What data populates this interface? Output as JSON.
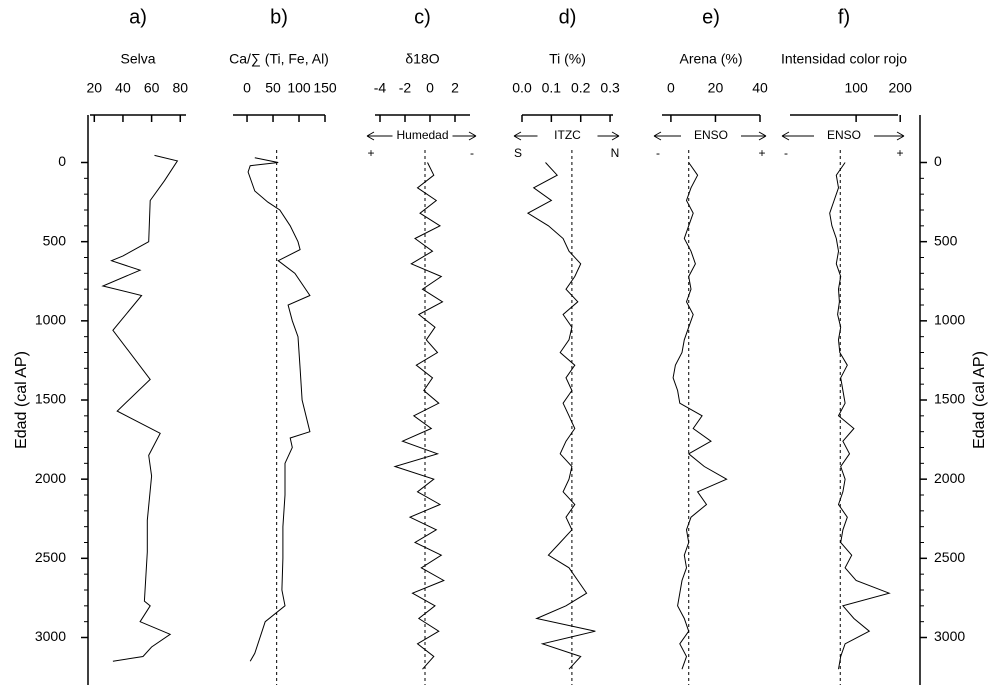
{
  "chart_data": [
    {
      "type": "line",
      "title": "a)",
      "xlabel": "Selva",
      "xlim": [
        17,
        84
      ],
      "xticks": [
        20,
        40,
        60,
        80
      ],
      "y": [
        -45,
        -10,
        115,
        240,
        500,
        590,
        620,
        680,
        780,
        840,
        1060,
        1370,
        1570,
        1710,
        1850,
        1980,
        2260,
        2460,
        2770,
        2800,
        2900,
        2980,
        3060,
        3120,
        3150
      ],
      "values": [
        62,
        78,
        69,
        59,
        58,
        40,
        32,
        52,
        26,
        53,
        33,
        59,
        36,
        66,
        58,
        60,
        57,
        57,
        55,
        59,
        52,
        73,
        60,
        54,
        33
      ]
    },
    {
      "type": "line",
      "title": "b)",
      "xlabel": "Ca/∑ (Ti, Fe, Al)",
      "xlim": [
        -27,
        150
      ],
      "xticks": [
        0,
        50,
        100,
        150
      ],
      "ref_line": 57,
      "y": [
        -30,
        0,
        20,
        60,
        180,
        250,
        300,
        400,
        500,
        550,
        620,
        700,
        840,
        900,
        1000,
        1100,
        1300,
        1500,
        1700,
        1740,
        1800,
        1900,
        2100,
        2300,
        2500,
        2700,
        2800,
        2900,
        3000,
        3100,
        3150
      ],
      "values": [
        15,
        60,
        6,
        2,
        15,
        40,
        63,
        83,
        98,
        102,
        60,
        92,
        121,
        79,
        87,
        98,
        102,
        106,
        121,
        83,
        87,
        73,
        73,
        69,
        69,
        67,
        73,
        35,
        25,
        15,
        6
      ]
    },
    {
      "type": "line",
      "title": "c)",
      "xlabel": "δ18O",
      "xlim": [
        -4.4,
        3.2
      ],
      "xticks": [
        -4,
        -2,
        0,
        2
      ],
      "ref_line": -0.4,
      "annotation": {
        "label": "Humedad",
        "left": "+",
        "right": "-"
      },
      "y": [
        0,
        80,
        160,
        240,
        320,
        400,
        480,
        560,
        640,
        720,
        800,
        880,
        960,
        1040,
        1120,
        1200,
        1280,
        1360,
        1440,
        1520,
        1600,
        1680,
        1760,
        1840,
        1920,
        2000,
        2080,
        2160,
        2240,
        2320,
        2400,
        2480,
        2560,
        2640,
        2720,
        2800,
        2880,
        2960,
        3040,
        3120,
        3200
      ],
      "values": [
        -0.2,
        0.3,
        -1.0,
        0.5,
        -0.8,
        0.8,
        -1.2,
        0.2,
        -1.5,
        0.9,
        -0.6,
        1.0,
        -0.9,
        0.4,
        -0.3,
        0.6,
        -1.1,
        0.2,
        -0.5,
        0.7,
        -1.3,
        0.1,
        -2.2,
        0.6,
        -2.8,
        0.3,
        -1.0,
        0.8,
        -1.6,
        0.5,
        -1.2,
        0.9,
        -0.7,
        1.1,
        -1.4,
        0.4,
        -0.9,
        0.7,
        -1.0,
        0.3,
        -0.6
      ]
    },
    {
      "type": "line",
      "title": "d)",
      "xlabel": "Ti (%)",
      "xlim": [
        0,
        0.31
      ],
      "xticks": [
        {
          "value": 0,
          "label": "0.0"
        },
        0.1,
        0.2,
        0.3
      ],
      "ref_line": 0.17,
      "annotation": {
        "label": "ITZC",
        "left": "S",
        "right": "N"
      },
      "y": [
        0,
        80,
        160,
        240,
        320,
        400,
        480,
        560,
        640,
        720,
        800,
        880,
        960,
        1040,
        1120,
        1200,
        1280,
        1360,
        1440,
        1520,
        1600,
        1680,
        1760,
        1840,
        1920,
        2000,
        2080,
        2160,
        2240,
        2320,
        2400,
        2480,
        2560,
        2640,
        2720,
        2800,
        2880,
        2960,
        3040,
        3120,
        3200
      ],
      "values": [
        0.08,
        0.12,
        0.04,
        0.1,
        0.02,
        0.09,
        0.14,
        0.16,
        0.2,
        0.18,
        0.15,
        0.19,
        0.14,
        0.17,
        0.16,
        0.13,
        0.18,
        0.15,
        0.17,
        0.14,
        0.16,
        0.18,
        0.15,
        0.13,
        0.17,
        0.16,
        0.14,
        0.18,
        0.15,
        0.17,
        0.13,
        0.09,
        0.16,
        0.19,
        0.22,
        0.15,
        0.05,
        0.25,
        0.07,
        0.2,
        0.16
      ]
    },
    {
      "type": "line",
      "title": "e)",
      "xlabel": "Arena (%)",
      "xlim": [
        -4,
        40
      ],
      "xticks": [
        0,
        20,
        40
      ],
      "ref_line": 8,
      "annotation": {
        "label": "ENSO",
        "left": "-",
        "right": "+"
      },
      "y": [
        0,
        80,
        160,
        240,
        320,
        400,
        480,
        560,
        640,
        720,
        800,
        880,
        960,
        1040,
        1120,
        1200,
        1280,
        1360,
        1440,
        1520,
        1600,
        1680,
        1760,
        1840,
        1920,
        2000,
        2080,
        2160,
        2240,
        2320,
        2400,
        2480,
        2560,
        2640,
        2720,
        2800,
        2880,
        2960,
        3040,
        3120,
        3200
      ],
      "values": [
        8,
        12,
        9,
        7,
        10,
        8,
        6,
        9,
        11,
        8,
        9,
        7,
        10,
        8,
        6,
        5,
        2,
        1,
        3,
        4,
        14,
        10,
        18,
        8,
        15,
        25,
        12,
        16,
        9,
        7,
        8,
        6,
        7,
        5,
        4,
        3,
        6,
        8,
        4,
        7,
        5
      ]
    },
    {
      "type": "line",
      "title": "f)",
      "xlabel": "Intensidad color rojo",
      "xlim": [
        -50,
        195
      ],
      "xticks": [
        100,
        200
      ],
      "ref_line": 64,
      "annotation": {
        "label": "ENSO",
        "left": "-",
        "right": "+"
      },
      "y": [
        0,
        80,
        160,
        240,
        320,
        400,
        480,
        560,
        640,
        720,
        800,
        880,
        960,
        1040,
        1120,
        1200,
        1280,
        1360,
        1440,
        1520,
        1600,
        1680,
        1760,
        1840,
        1920,
        2000,
        2080,
        2160,
        2240,
        2320,
        2400,
        2480,
        2560,
        2640,
        2720,
        2800,
        2880,
        2960,
        3040,
        3120,
        3200
      ],
      "values": [
        75,
        55,
        60,
        50,
        40,
        45,
        55,
        60,
        55,
        65,
        60,
        62,
        58,
        65,
        60,
        63,
        80,
        65,
        70,
        75,
        60,
        95,
        70,
        85,
        65,
        75,
        70,
        60,
        80,
        70,
        65,
        90,
        75,
        100,
        175,
        70,
        95,
        130,
        75,
        65,
        60
      ]
    }
  ],
  "y_axis": {
    "label": "Edad (cal AP)",
    "ylim": [
      -300,
      3300
    ],
    "yticks": [
      0,
      500,
      1000,
      1500,
      2000,
      2500,
      3000
    ]
  }
}
